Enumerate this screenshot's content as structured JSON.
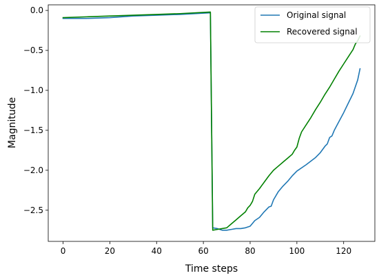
{
  "chart_data": {
    "type": "line",
    "title": "",
    "xlabel": "Time steps",
    "ylabel": "Magnitude",
    "xlim": [
      -6.35,
      133.35
    ],
    "ylim": [
      -2.89,
      0.07
    ],
    "xticks": [
      0,
      20,
      40,
      60,
      80,
      100,
      120
    ],
    "yticks": [
      0.0,
      -0.5,
      -1.0,
      -1.5,
      -2.0,
      -2.5
    ],
    "ytick_labels": [
      "0.0",
      "−0.5",
      "−1.0",
      "−1.5",
      "−2.0",
      "−2.5"
    ],
    "grid": false,
    "legend_position": "top-right",
    "series": [
      {
        "name": "Original signal",
        "color": "#1f77b4",
        "points": [
          [
            0,
            -0.1
          ],
          [
            10,
            -0.1
          ],
          [
            20,
            -0.09
          ],
          [
            30,
            -0.07
          ],
          [
            40,
            -0.06
          ],
          [
            50,
            -0.05
          ],
          [
            63,
            -0.03
          ],
          [
            64,
            -2.72
          ],
          [
            66,
            -2.73
          ],
          [
            68,
            -2.75
          ],
          [
            70,
            -2.75
          ],
          [
            72,
            -2.74
          ],
          [
            74,
            -2.73
          ],
          [
            76,
            -2.73
          ],
          [
            78,
            -2.72
          ],
          [
            80,
            -2.7
          ],
          [
            82,
            -2.63
          ],
          [
            84,
            -2.59
          ],
          [
            86,
            -2.52
          ],
          [
            88,
            -2.46
          ],
          [
            89,
            -2.45
          ],
          [
            90,
            -2.37
          ],
          [
            92,
            -2.27
          ],
          [
            94,
            -2.2
          ],
          [
            96,
            -2.14
          ],
          [
            98,
            -2.07
          ],
          [
            100,
            -2.01
          ],
          [
            104,
            -1.93
          ],
          [
            108,
            -1.84
          ],
          [
            110,
            -1.78
          ],
          [
            111,
            -1.74
          ],
          [
            112,
            -1.7
          ],
          [
            113,
            -1.67
          ],
          [
            114,
            -1.59
          ],
          [
            115,
            -1.57
          ],
          [
            116,
            -1.5
          ],
          [
            118,
            -1.39
          ],
          [
            120,
            -1.28
          ],
          [
            122,
            -1.16
          ],
          [
            124,
            -1.04
          ],
          [
            126,
            -0.87
          ],
          [
            127,
            -0.73
          ]
        ]
      },
      {
        "name": "Recovered signal",
        "color": "#008000",
        "points": [
          [
            0,
            -0.09
          ],
          [
            10,
            -0.08
          ],
          [
            20,
            -0.07
          ],
          [
            30,
            -0.06
          ],
          [
            40,
            -0.05
          ],
          [
            50,
            -0.04
          ],
          [
            63,
            -0.02
          ],
          [
            64,
            -2.75
          ],
          [
            66,
            -2.74
          ],
          [
            68,
            -2.73
          ],
          [
            70,
            -2.72
          ],
          [
            72,
            -2.67
          ],
          [
            74,
            -2.62
          ],
          [
            76,
            -2.57
          ],
          [
            78,
            -2.52
          ],
          [
            79,
            -2.47
          ],
          [
            80,
            -2.44
          ],
          [
            81,
            -2.39
          ],
          [
            82,
            -2.3
          ],
          [
            84,
            -2.23
          ],
          [
            86,
            -2.15
          ],
          [
            88,
            -2.07
          ],
          [
            90,
            -2.0
          ],
          [
            92,
            -1.95
          ],
          [
            94,
            -1.9
          ],
          [
            96,
            -1.85
          ],
          [
            98,
            -1.8
          ],
          [
            99,
            -1.75
          ],
          [
            100,
            -1.71
          ],
          [
            101,
            -1.6
          ],
          [
            102,
            -1.52
          ],
          [
            104,
            -1.43
          ],
          [
            106,
            -1.34
          ],
          [
            108,
            -1.24
          ],
          [
            110,
            -1.15
          ],
          [
            112,
            -1.05
          ],
          [
            114,
            -0.96
          ],
          [
            116,
            -0.86
          ],
          [
            118,
            -0.76
          ],
          [
            120,
            -0.67
          ],
          [
            122,
            -0.58
          ],
          [
            124,
            -0.49
          ],
          [
            125,
            -0.42
          ],
          [
            126,
            -0.38
          ],
          [
            127,
            -0.32
          ]
        ]
      }
    ]
  }
}
